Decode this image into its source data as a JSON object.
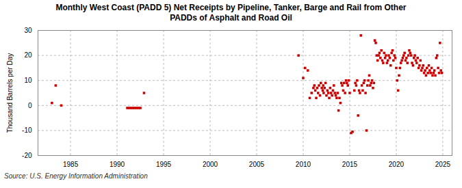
{
  "chart_data": {
    "type": "scatter",
    "title": "Monthly West Coast (PADD 5) Net Receipts by Pipeline, Tanker, Barge and Rail from Other\nPADDs of Asphalt and Road Oil",
    "ylabel": "Thousand Barrels per Day",
    "source": "Source: U.S. Energy Information Administration",
    "color": "#cc0000",
    "marker": "square",
    "grid": true,
    "xlim": [
      1981.5,
      2026.0
    ],
    "ylim": [
      -20,
      30
    ],
    "xticks": [
      1985,
      1990,
      1995,
      2000,
      2005,
      2010,
      2015,
      2020,
      2025
    ],
    "yticks": [
      -20,
      -10,
      0,
      10,
      20,
      30
    ],
    "x": [
      1983.0,
      1983.4,
      1984.0,
      1991.1,
      1991.3,
      1991.5,
      1991.7,
      1991.9,
      1992.1,
      1992.3,
      1992.5,
      1992.9,
      2009.5,
      2010.0,
      2010.2,
      2010.5,
      2010.7,
      2010.9,
      2011.1,
      2011.2,
      2011.3,
      2011.4,
      2011.5,
      2011.6,
      2011.7,
      2011.8,
      2011.9,
      2012.0,
      2012.1,
      2012.15,
      2012.2,
      2012.3,
      2012.4,
      2012.5,
      2012.6,
      2012.7,
      2012.8,
      2012.9,
      2013.0,
      2013.1,
      2013.2,
      2013.3,
      2013.4,
      2013.5,
      2013.6,
      2013.7,
      2013.8,
      2013.9,
      2014.0,
      2014.1,
      2014.2,
      2014.3,
      2014.4,
      2014.5,
      2014.6,
      2014.7,
      2014.8,
      2014.9,
      2015.0,
      2015.15,
      2015.3,
      2015.5,
      2015.6,
      2015.7,
      2015.8,
      2015.9,
      2016.0,
      2016.1,
      2016.2,
      2016.3,
      2016.4,
      2016.5,
      2016.6,
      2016.7,
      2016.8,
      2016.9,
      2017.0,
      2017.1,
      2017.2,
      2017.3,
      2017.4,
      2017.5,
      2017.6,
      2017.7,
      2017.8,
      2017.9,
      2018.0,
      2018.1,
      2018.2,
      2018.3,
      2018.4,
      2018.5,
      2018.6,
      2018.7,
      2018.8,
      2018.9,
      2019.0,
      2019.1,
      2019.2,
      2019.3,
      2019.4,
      2019.5,
      2019.6,
      2019.7,
      2019.8,
      2019.9,
      2020.0,
      2020.1,
      2020.2,
      2020.3,
      2020.4,
      2020.5,
      2020.6,
      2020.7,
      2020.8,
      2020.9,
      2021.0,
      2021.1,
      2021.2,
      2021.3,
      2021.4,
      2021.5,
      2021.6,
      2021.7,
      2021.8,
      2021.9,
      2022.0,
      2022.1,
      2022.2,
      2022.3,
      2022.4,
      2022.5,
      2022.6,
      2022.7,
      2022.8,
      2022.9,
      2023.0,
      2023.1,
      2023.2,
      2023.3,
      2023.4,
      2023.5,
      2023.6,
      2023.7,
      2023.8,
      2023.9,
      2024.0,
      2024.1,
      2024.2,
      2024.3,
      2024.4,
      2024.5,
      2024.6,
      2024.7,
      2024.8,
      2024.9
    ],
    "values": [
      1.0,
      8.0,
      0.0,
      -1.0,
      -1.0,
      -1.0,
      -1.0,
      -1.0,
      -1.0,
      -1.0,
      -1.0,
      5.0,
      20.0,
      11.0,
      15.0,
      14.0,
      3.0,
      5.0,
      7.0,
      8.0,
      6.0,
      3.0,
      7.0,
      5.0,
      8.0,
      4.0,
      9.0,
      7.0,
      6.0,
      8.0,
      5.0,
      7.0,
      9.0,
      4.0,
      6.0,
      5.0,
      3.0,
      7.0,
      5.0,
      4.0,
      6.0,
      8.0,
      5.0,
      4.0,
      3.0,
      5.0,
      -2.0,
      3.0,
      1.0,
      9.0,
      8.0,
      6.0,
      9.0,
      5.0,
      10.0,
      9.0,
      8.0,
      10.0,
      5.0,
      -11.0,
      -10.5,
      6.0,
      9.0,
      8.0,
      10.0,
      -4.0,
      6.0,
      5.0,
      28.0,
      8.0,
      6.0,
      9.0,
      10.0,
      5.0,
      -10.0,
      8.0,
      10.0,
      12.0,
      8.0,
      9.0,
      10.0,
      7.0,
      9.0,
      26.0,
      25.0,
      20.0,
      18.0,
      20.0,
      21.0,
      19.0,
      22.0,
      18.0,
      17.0,
      21.0,
      19.0,
      20.0,
      17.0,
      18.0,
      20.0,
      19.0,
      16.0,
      21.0,
      22.0,
      18.0,
      20.0,
      19.0,
      15.0,
      10.0,
      6.0,
      12.0,
      15.0,
      17.0,
      18.0,
      19.0,
      20.0,
      21.0,
      18.0,
      19.0,
      17.0,
      20.0,
      22.0,
      21.0,
      20.0,
      17.0,
      16.0,
      19.0,
      20.0,
      18.0,
      17.0,
      19.0,
      15.0,
      16.0,
      18.0,
      14.0,
      15.0,
      16.0,
      13.0,
      14.0,
      12.0,
      15.0,
      13.0,
      16.0,
      14.0,
      13.0,
      15.0,
      12.0,
      13.0,
      14.0,
      12.0,
      19.0,
      20.0,
      15.0,
      13.0,
      25.0,
      14.0,
      13.0
    ]
  }
}
